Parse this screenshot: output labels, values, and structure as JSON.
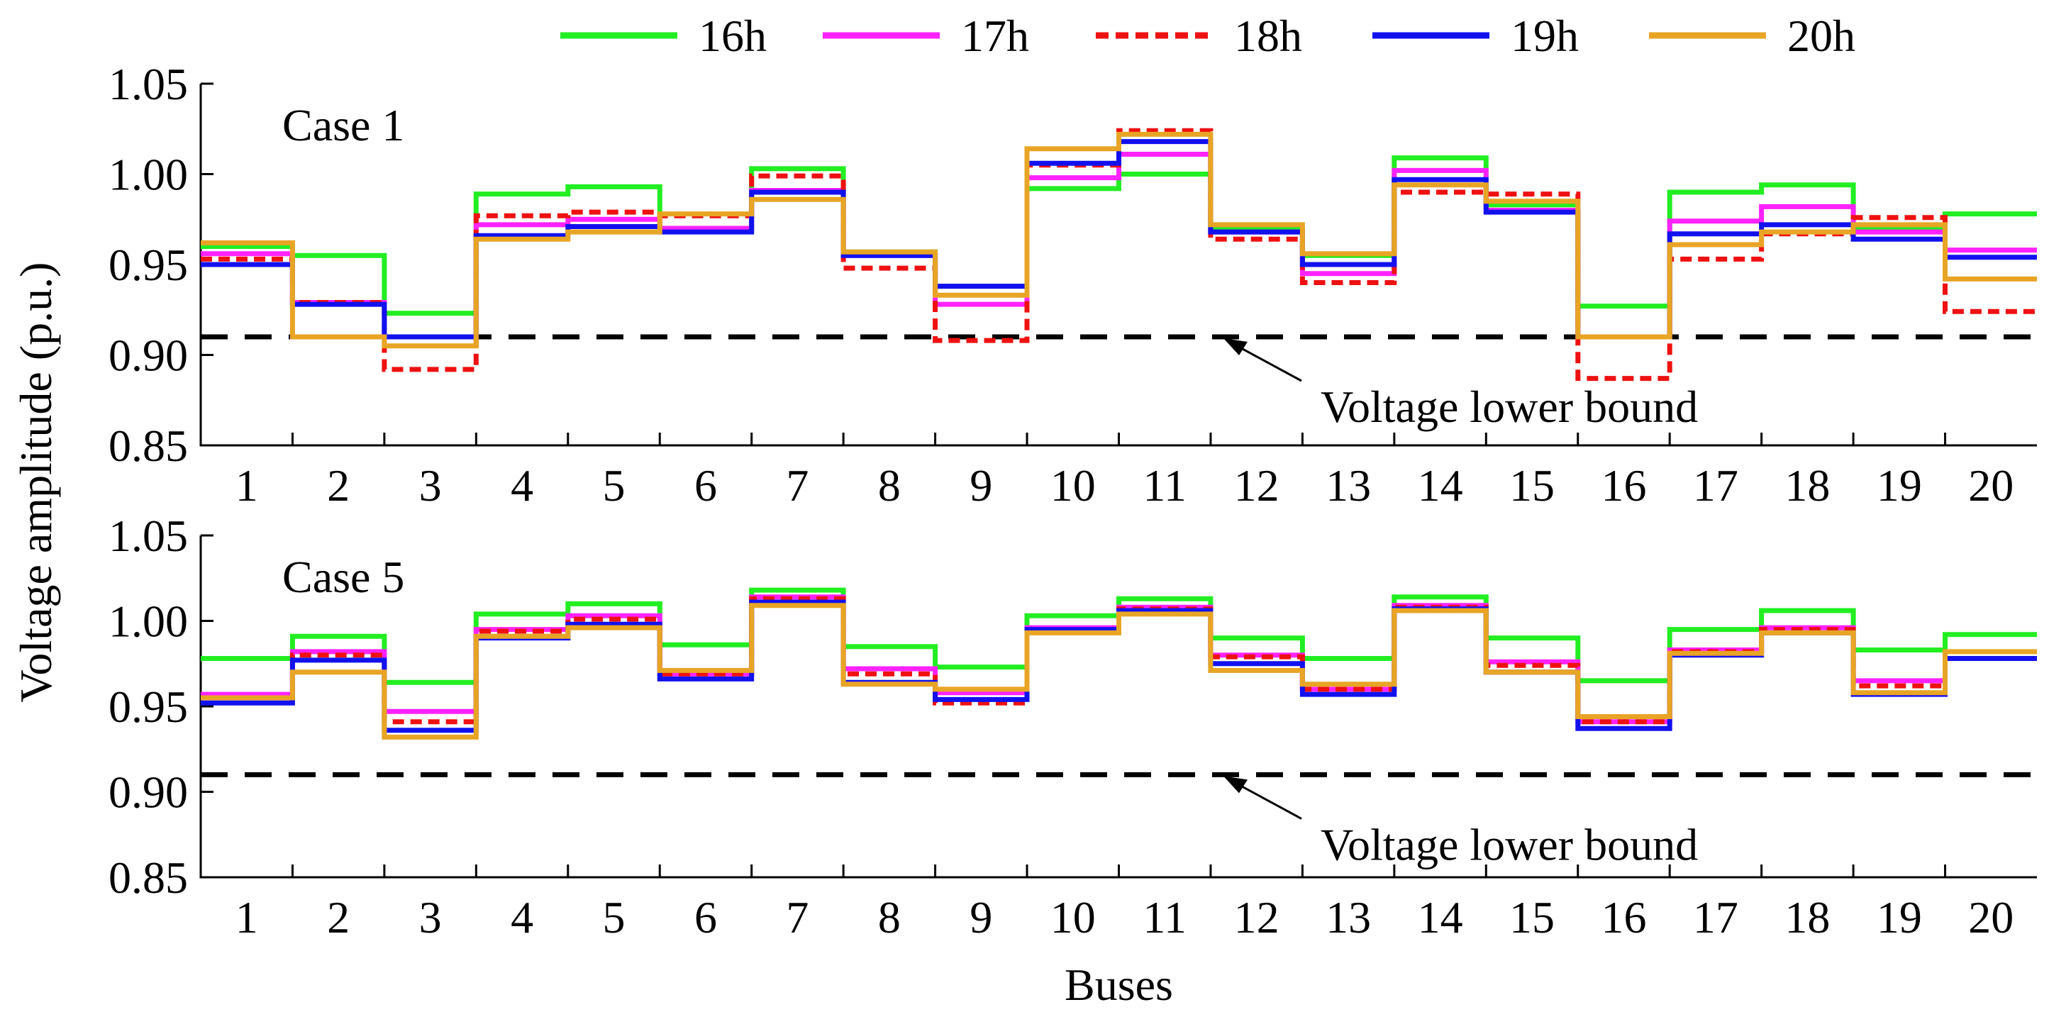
{
  "chart_data": {
    "type": "line",
    "step": true,
    "ylabel": "Voltage amplitude (p.u.)",
    "xlabel": "Buses",
    "categories": [
      "1",
      "2",
      "3",
      "4",
      "5",
      "6",
      "7",
      "8",
      "9",
      "10",
      "11",
      "12",
      "13",
      "14",
      "15",
      "16",
      "17",
      "18",
      "19",
      "20"
    ],
    "ylim": [
      0.85,
      1.05
    ],
    "yticks": [
      "0.85",
      "0.90",
      "0.95",
      "1.00",
      "1.05"
    ],
    "lower_bound": 0.91,
    "legend": [
      {
        "name": "16h",
        "color": "#22ee22",
        "dashed": false
      },
      {
        "name": "17h",
        "color": "#ff22ff",
        "dashed": false
      },
      {
        "name": "18h",
        "color": "#ee1111",
        "dashed": true
      },
      {
        "name": "19h",
        "color": "#1111ee",
        "dashed": false
      },
      {
        "name": "20h",
        "color": "#e8a525",
        "dashed": false
      }
    ],
    "panels": [
      {
        "title": "Case 1",
        "annotation": "Voltage lower bound",
        "series": [
          {
            "name": "16h",
            "values": [
              0.96,
              0.955,
              0.923,
              0.989,
              0.993,
              0.97,
              1.003,
              0.957,
              0.938,
              0.992,
              1.0,
              0.97,
              0.955,
              1.009,
              0.983,
              0.927,
              0.99,
              0.994,
              0.97,
              0.978
            ]
          },
          {
            "name": "17h",
            "values": [
              0.956,
              0.929,
              0.91,
              0.972,
              0.975,
              0.97,
              0.991,
              0.955,
              0.928,
              0.998,
              1.011,
              0.968,
              0.945,
              1.002,
              0.98,
              0.91,
              0.974,
              0.982,
              0.968,
              0.958
            ]
          },
          {
            "name": "18h",
            "values": [
              0.953,
              0.929,
              0.892,
              0.977,
              0.979,
              0.977,
              0.999,
              0.948,
              0.908,
              1.005,
              1.024,
              0.964,
              0.94,
              0.99,
              0.989,
              0.887,
              0.953,
              0.967,
              0.976,
              0.924
            ]
          },
          {
            "name": "19h",
            "values": [
              0.95,
              0.928,
              0.91,
              0.966,
              0.971,
              0.968,
              0.99,
              0.955,
              0.938,
              1.006,
              1.018,
              0.968,
              0.95,
              0.997,
              0.979,
              0.91,
              0.967,
              0.972,
              0.964,
              0.954
            ]
          },
          {
            "name": "20h",
            "values": [
              0.962,
              0.91,
              0.905,
              0.964,
              0.968,
              0.978,
              0.986,
              0.957,
              0.933,
              1.014,
              1.022,
              0.972,
              0.956,
              0.994,
              0.985,
              0.91,
              0.961,
              0.968,
              0.972,
              0.942
            ]
          }
        ]
      },
      {
        "title": "Case 5",
        "annotation": "Voltage lower bound",
        "series": [
          {
            "name": "16h",
            "values": [
              0.978,
              0.991,
              0.964,
              1.004,
              1.01,
              0.986,
              1.018,
              0.985,
              0.973,
              1.003,
              1.013,
              0.99,
              0.978,
              1.014,
              0.99,
              0.965,
              0.995,
              1.006,
              0.983,
              0.992
            ]
          },
          {
            "name": "17h",
            "values": [
              0.957,
              0.982,
              0.947,
              0.995,
              1.003,
              0.969,
              1.014,
              0.972,
              0.958,
              0.996,
              1.008,
              0.98,
              0.96,
              1.009,
              0.976,
              0.941,
              0.983,
              0.996,
              0.965,
              0.978
            ]
          },
          {
            "name": "18h",
            "values": [
              0.955,
              0.98,
              0.941,
              0.994,
              1.001,
              0.969,
              1.013,
              0.969,
              0.952,
              0.994,
              1.007,
              0.979,
              0.96,
              1.008,
              0.974,
              0.941,
              0.982,
              0.995,
              0.962,
              0.978
            ]
          },
          {
            "name": "19h",
            "values": [
              0.952,
              0.977,
              0.936,
              0.99,
              0.998,
              0.966,
              1.011,
              0.964,
              0.954,
              0.995,
              1.006,
              0.975,
              0.957,
              1.007,
              0.97,
              0.937,
              0.98,
              0.993,
              0.957,
              0.978
            ]
          },
          {
            "name": "20h",
            "values": [
              0.955,
              0.97,
              0.932,
              0.991,
              0.996,
              0.971,
              1.009,
              0.963,
              0.96,
              0.993,
              1.004,
              0.971,
              0.963,
              1.006,
              0.97,
              0.944,
              0.981,
              0.993,
              0.958,
              0.982
            ]
          }
        ]
      }
    ]
  }
}
